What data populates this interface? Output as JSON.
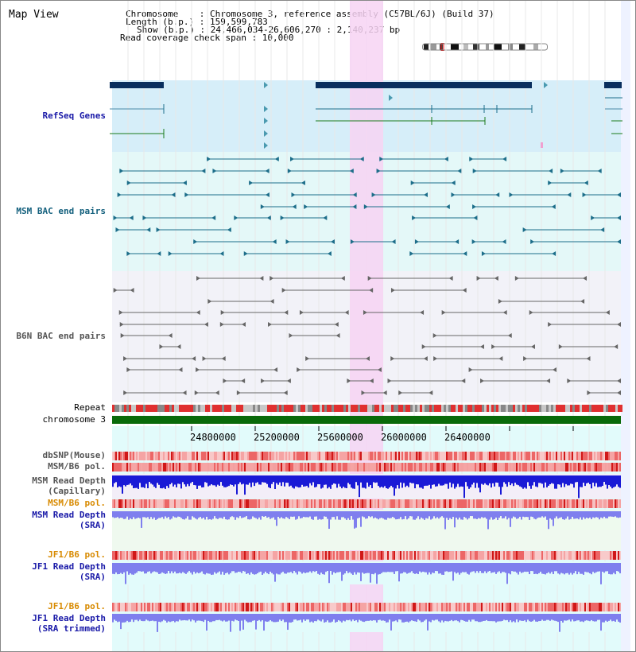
{
  "page_title": "Map View",
  "header": {
    "chromosome_line": "Chromosome    : Chromosome 3, reference assembly (C57BL/6J) (Build 37)",
    "length_line": "Length (b.p.) : 159,599,783",
    "show_line": "Show (b.p.) : 24,466,034-26,606,270 : 2,140,237 bp",
    "coverage_line": "Read coverage check span : 10,000"
  },
  "tracks": {
    "refseq": "RefSeq Genes",
    "msm_bac": "MSM BAC end pairs",
    "b6n_bac": "B6N BAC end pairs",
    "repeat": "Repeat",
    "chromosome": "chromosome 3",
    "dbsnp": "dbSNP(Mouse)",
    "msm_b6_pol_1": "MSM/B6 pol.",
    "msm_read_depth_cap_1": "MSM Read Depth",
    "msm_read_depth_cap_2": "(Capillary)",
    "msm_b6_pol_2": "MSM/B6 pol.",
    "msm_read_depth_sra_1": "MSM Read Depth",
    "msm_read_depth_sra_2": "(SRA)",
    "jf1_b6_pol_1": "JF1/B6 pol.",
    "jf1_read_depth_sra_1": "JF1 Read Depth",
    "jf1_read_depth_sra_2": "(SRA)",
    "jf1_b6_pol_2": "JF1/B6 pol.",
    "jf1_read_depth_trim_1": "JF1 Read Depth",
    "jf1_read_depth_trim_2": "(SRA trimmed)"
  },
  "axis_ticks": [
    "24800000",
    "25200000",
    "25600000",
    "26000000",
    "26400000"
  ],
  "colors": {
    "refseq_bg": "#d6eef9",
    "msm_bg": "#e4f8f8",
    "b6n_bg": "#f2f2f8",
    "lower_bg": "#e2fbfb",
    "highlight": "#f7d4f3",
    "gene_dark": "#0a2f5e",
    "bac_teal": "#1d6e8a",
    "bac_gray": "#666666",
    "chromosome": "#0a6a0a",
    "depth_blue": "#1a1ad6",
    "depth_light": "#7f7fee",
    "label_blue": "#1a1aa8",
    "label_orange": "#d88a00",
    "label_teal": "#15617e"
  }
}
